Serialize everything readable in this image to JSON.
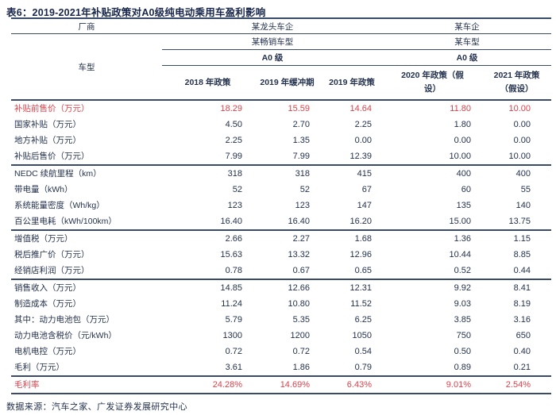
{
  "title": "表6：2019-2021年补贴政策对A0级纯电动乘用车盈利影响",
  "colors": {
    "text_navy": "#24324f",
    "title_navy": "#17264a",
    "highlight_red": "#d9434c",
    "rule_line": "#3a4a6b",
    "background": "#ffffff"
  },
  "table": {
    "header": {
      "manufacturer_label": "厂商",
      "model_label": "车型",
      "groups": [
        {
          "name": "某龙头车企",
          "model": "某畅销车型",
          "class": "A0 级"
        },
        {
          "name": "某车企",
          "model": "某车型",
          "class": "A0 级"
        }
      ],
      "columns": [
        "2018 年政策",
        "2019 年缓冲期",
        "2019 年政策",
        "2020 年政策（假设）",
        "2021 年政策（假设）"
      ]
    },
    "sections": [
      {
        "rows": [
          {
            "label": "补贴前售价（万元）",
            "values": [
              "18.29",
              "15.59",
              "14.64",
              "11.80",
              "10.00"
            ],
            "highlight": true
          },
          {
            "label": "国家补贴（万元）",
            "values": [
              "4.50",
              "2.70",
              "2.25",
              "1.80",
              "0.00"
            ]
          },
          {
            "label": "地方补贴（万元）",
            "values": [
              "2.25",
              "1.35",
              "0.00",
              "0.00",
              "0.00"
            ]
          },
          {
            "label": "补贴后售价（万元）",
            "values": [
              "7.99",
              "7.99",
              "12.39",
              "10.00",
              "10.00"
            ]
          }
        ]
      },
      {
        "rows": [
          {
            "label": "NEDC 续航里程（km）",
            "values": [
              "318",
              "318",
              "415",
              "400",
              "400"
            ]
          },
          {
            "label": "带电量（kWh）",
            "values": [
              "52",
              "52",
              "67",
              "60",
              "55"
            ]
          },
          {
            "label": "系统能量密度（Wh/kg）",
            "values": [
              "123",
              "123",
              "147",
              "135",
              "140"
            ]
          },
          {
            "label": "百公里电耗（kWh/100km）",
            "values": [
              "16.40",
              "16.40",
              "16.20",
              "15.00",
              "13.75"
            ]
          }
        ]
      },
      {
        "rows": [
          {
            "label": "增值税（万元）",
            "values": [
              "2.66",
              "2.27",
              "1.68",
              "1.36",
              "1.15"
            ]
          },
          {
            "label": "税后推广价（万元）",
            "values": [
              "15.63",
              "13.32",
              "12.96",
              "10.44",
              "8.85"
            ]
          },
          {
            "label": "经销店利润（万元）",
            "values": [
              "0.78",
              "0.67",
              "0.65",
              "0.52",
              "0.44"
            ]
          }
        ]
      },
      {
        "rows": [
          {
            "label": "销售收入（万元）",
            "values": [
              "14.85",
              "12.66",
              "12.31",
              "9.92",
              "8.41"
            ]
          },
          {
            "label": "制造成本（万元）",
            "values": [
              "11.24",
              "10.80",
              "11.52",
              "9.03",
              "8.19"
            ]
          },
          {
            "label": "其中：动力电池包（万元）",
            "values": [
              "5.79",
              "5.35",
              "6.25",
              "3.85",
              "3.16"
            ]
          },
          {
            "label": "动力电池含税价（元/kWh）",
            "values": [
              "1300",
              "1200",
              "1050",
              "750",
              "650"
            ]
          },
          {
            "label": "电机电控（万元）",
            "values": [
              "0.72",
              "0.72",
              "0.54",
              "0.50",
              "0.40"
            ]
          },
          {
            "label": "毛利（万元）",
            "values": [
              "3.61",
              "1.86",
              "0.79",
              "0.89",
              "0.21"
            ]
          }
        ]
      },
      {
        "rows": [
          {
            "label": "毛利率",
            "values": [
              "24.28%",
              "14.69%",
              "6.43%",
              "9.01%",
              "2.54%"
            ],
            "highlight": true
          }
        ]
      }
    ]
  },
  "footer": {
    "source": "数据来源：汽车之家、广发证券发展研究中心"
  }
}
